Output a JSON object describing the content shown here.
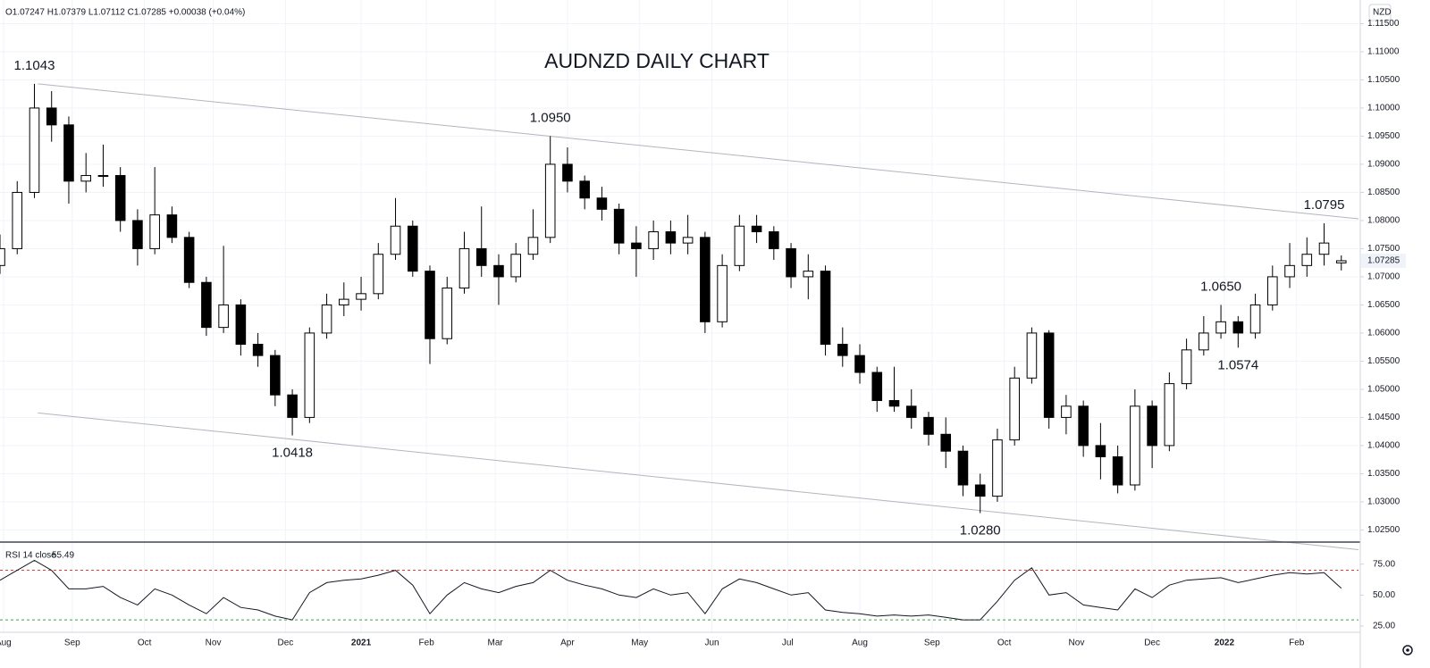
{
  "chart_data": {
    "type": "candlestick",
    "title": "AUDNZD DAILY CHART",
    "legend_text": "O1.07247 H1.07379 L1.07112 C1.07285 +0.00038 (+0.04%)",
    "currency_button": "NZD",
    "x": [
      0,
      5,
      10,
      15,
      20,
      25,
      30,
      35,
      40,
      45,
      50,
      55,
      60,
      65,
      70,
      75,
      80,
      85,
      90,
      95,
      100,
      105,
      110,
      115,
      120,
      125,
      130,
      135,
      140,
      145,
      150,
      155,
      160,
      165,
      170,
      175,
      180,
      185,
      190,
      195,
      200,
      205,
      210,
      215,
      220,
      225,
      230,
      235,
      240,
      245,
      250,
      255,
      260,
      265,
      270,
      275,
      280,
      285,
      290,
      295,
      300,
      305,
      310,
      315,
      320,
      325,
      330,
      335,
      340,
      345,
      350,
      355,
      360,
      365,
      370,
      375,
      380,
      385,
      390
    ],
    "open": [
      1.072,
      1.075,
      1.085,
      1.1,
      1.097,
      1.087,
      1.088,
      1.088,
      1.08,
      1.075,
      1.081,
      1.077,
      1.069,
      1.061,
      1.065,
      1.058,
      1.056,
      1.049,
      1.045,
      1.06,
      1.065,
      1.066,
      1.067,
      1.074,
      1.079,
      1.071,
      1.059,
      1.068,
      1.075,
      1.072,
      1.07,
      1.074,
      1.077,
      1.09,
      1.087,
      1.084,
      1.082,
      1.076,
      1.075,
      1.078,
      1.076,
      1.077,
      1.062,
      1.072,
      1.079,
      1.078,
      1.075,
      1.07,
      1.071,
      1.058,
      1.056,
      1.053,
      1.048,
      1.047,
      1.045,
      1.042,
      1.039,
      1.033,
      1.031,
      1.041,
      1.052,
      1.06,
      1.045,
      1.047,
      1.04,
      1.038,
      1.033,
      1.047,
      1.04,
      1.051,
      1.057,
      1.06,
      1.062,
      1.06,
      1.065,
      1.07,
      1.072,
      1.074,
      1.07247
    ],
    "high": [
      1.0775,
      1.087,
      1.1043,
      1.103,
      1.0985,
      1.092,
      1.0935,
      1.0895,
      1.082,
      1.0895,
      1.0825,
      1.078,
      1.07,
      1.0755,
      1.066,
      1.06,
      1.057,
      1.05,
      1.061,
      1.067,
      1.069,
      1.07,
      1.076,
      1.084,
      1.08,
      1.072,
      1.07,
      1.078,
      1.0825,
      1.074,
      1.076,
      1.082,
      1.095,
      1.093,
      1.088,
      1.086,
      1.083,
      1.079,
      1.08,
      1.08,
      1.081,
      1.078,
      1.074,
      1.081,
      1.081,
      1.079,
      1.076,
      1.074,
      1.072,
      1.061,
      1.058,
      1.054,
      1.054,
      1.05,
      1.046,
      1.045,
      1.04,
      1.035,
      1.043,
      1.054,
      1.061,
      1.0605,
      1.049,
      1.048,
      1.044,
      1.04,
      1.05,
      1.048,
      1.053,
      1.059,
      1.063,
      1.065,
      1.063,
      1.067,
      1.072,
      1.076,
      1.077,
      1.0795,
      1.07379
    ],
    "low": [
      1.0705,
      1.074,
      1.084,
      1.094,
      1.083,
      1.085,
      1.086,
      1.078,
      1.072,
      1.074,
      1.076,
      1.068,
      1.0595,
      1.06,
      1.056,
      1.054,
      1.047,
      1.0418,
      1.044,
      1.059,
      1.063,
      1.064,
      1.066,
      1.073,
      1.07,
      1.0545,
      1.058,
      1.067,
      1.07,
      1.065,
      1.069,
      1.073,
      1.076,
      1.085,
      1.082,
      1.08,
      1.074,
      1.07,
      1.073,
      1.074,
      1.074,
      1.06,
      1.061,
      1.071,
      1.076,
      1.073,
      1.068,
      1.066,
      1.056,
      1.054,
      1.051,
      1.046,
      1.046,
      1.043,
      1.04,
      1.036,
      1.031,
      1.028,
      1.03,
      1.04,
      1.051,
      1.043,
      1.042,
      1.038,
      1.034,
      1.0315,
      1.032,
      1.036,
      1.039,
      1.05,
      1.056,
      1.059,
      1.0574,
      1.059,
      1.064,
      1.068,
      1.07,
      1.072,
      1.07112
    ],
    "close": [
      1.075,
      1.085,
      1.1,
      1.097,
      1.087,
      1.088,
      1.088,
      1.08,
      1.075,
      1.081,
      1.077,
      1.069,
      1.061,
      1.065,
      1.058,
      1.056,
      1.049,
      1.045,
      1.06,
      1.065,
      1.066,
      1.067,
      1.074,
      1.079,
      1.071,
      1.059,
      1.068,
      1.075,
      1.072,
      1.07,
      1.074,
      1.077,
      1.09,
      1.087,
      1.084,
      1.082,
      1.076,
      1.075,
      1.078,
      1.076,
      1.077,
      1.062,
      1.072,
      1.079,
      1.078,
      1.075,
      1.07,
      1.071,
      1.058,
      1.056,
      1.053,
      1.048,
      1.047,
      1.045,
      1.042,
      1.039,
      1.033,
      1.031,
      1.041,
      1.052,
      1.06,
      1.045,
      1.047,
      1.04,
      1.038,
      1.033,
      1.047,
      1.04,
      1.051,
      1.057,
      1.06,
      1.062,
      1.06,
      1.065,
      1.07,
      1.072,
      1.074,
      1.076,
      1.07285
    ],
    "up_color": "#ffffff",
    "down_color": "#000000",
    "xlim": [
      0,
      395
    ],
    "xticks": [
      {
        "value": 1,
        "label": "Aug"
      },
      {
        "value": 21,
        "label": "Sep"
      },
      {
        "value": 42,
        "label": "Oct"
      },
      {
        "value": 62,
        "label": "Nov"
      },
      {
        "value": 83,
        "label": "Dec"
      },
      {
        "value": 105,
        "label": "2021"
      },
      {
        "value": 124,
        "label": "Feb"
      },
      {
        "value": 144,
        "label": "Mar"
      },
      {
        "value": 165,
        "label": "Apr"
      },
      {
        "value": 186,
        "label": "May"
      },
      {
        "value": 207,
        "label": "Jun"
      },
      {
        "value": 229,
        "label": "Jul"
      },
      {
        "value": 250,
        "label": "Aug"
      },
      {
        "value": 271,
        "label": "Sep"
      },
      {
        "value": 292,
        "label": "Oct"
      },
      {
        "value": 313,
        "label": "Nov"
      },
      {
        "value": 335,
        "label": "Dec"
      },
      {
        "value": 356,
        "label": "2022"
      },
      {
        "value": 377,
        "label": "Feb"
      }
    ],
    "ylim": [
      1.023,
      1.1192
    ],
    "yticks": [
      {
        "value": 1.025,
        "label": "1.02500"
      },
      {
        "value": 1.03,
        "label": "1.03000"
      },
      {
        "value": 1.035,
        "label": "1.03500"
      },
      {
        "value": 1.04,
        "label": "1.04000"
      },
      {
        "value": 1.045,
        "label": "1.04500"
      },
      {
        "value": 1.05,
        "label": "1.05000"
      },
      {
        "value": 1.055,
        "label": "1.05500"
      },
      {
        "value": 1.06,
        "label": "1.06000"
      },
      {
        "value": 1.065,
        "label": "1.06500"
      },
      {
        "value": 1.07,
        "label": "1.07000"
      },
      {
        "value": 1.075,
        "label": "1.07500"
      },
      {
        "value": 1.08,
        "label": "1.08000"
      },
      {
        "value": 1.085,
        "label": "1.08500"
      },
      {
        "value": 1.09,
        "label": "1.09000"
      },
      {
        "value": 1.095,
        "label": "1.09500"
      },
      {
        "value": 1.1,
        "label": "1.10000"
      },
      {
        "value": 1.105,
        "label": "1.10500"
      },
      {
        "value": 1.11,
        "label": "1.11000"
      },
      {
        "value": 1.115,
        "label": "1.11500"
      }
    ],
    "grid": true,
    "annotations": [
      {
        "x": 10,
        "value": 1.1043,
        "label": "1.1043",
        "position": "above"
      },
      {
        "x": 160,
        "value": 1.095,
        "label": "1.0950",
        "position": "above"
      },
      {
        "x": 85,
        "value": 1.0418,
        "label": "1.0418",
        "position": "below"
      },
      {
        "x": 285,
        "value": 1.028,
        "label": "1.0280",
        "position": "below"
      },
      {
        "x": 355,
        "value": 1.065,
        "label": "1.0650",
        "position": "above"
      },
      {
        "x": 360,
        "value": 1.0574,
        "label": "1.0574",
        "position": "below"
      },
      {
        "x": 385,
        "value": 1.0795,
        "label": "1.0795",
        "position": "above"
      }
    ],
    "trendlines": [
      {
        "x": [
          11,
          395
        ],
        "y": [
          1.1043,
          1.0803
        ],
        "color": "#b2b5be"
      },
      {
        "x": [
          11,
          395
        ],
        "y": [
          1.0458,
          1.0215
        ],
        "color": "#b2b5be"
      }
    ],
    "rsi": {
      "label": "RSI 14 close",
      "color": "#131722",
      "values": [
        62,
        70,
        78,
        70,
        55,
        55,
        57,
        48,
        42,
        55,
        50,
        42,
        35,
        48,
        40,
        38,
        33,
        30,
        52,
        60,
        62,
        63,
        66,
        70,
        58,
        35,
        50,
        60,
        55,
        52,
        57,
        60,
        70,
        62,
        58,
        55,
        50,
        48,
        55,
        50,
        52,
        35,
        55,
        63,
        60,
        55,
        50,
        52,
        38,
        36,
        35,
        33,
        34,
        33,
        34,
        32,
        30,
        30,
        45,
        62,
        72,
        50,
        52,
        42,
        40,
        38,
        55,
        48,
        58,
        62,
        63,
        64,
        60,
        63,
        66,
        68,
        67,
        68,
        55.49
      ],
      "ylim": [
        20,
        92
      ],
      "yticks": [
        {
          "value": 25,
          "label": "25.00"
        },
        {
          "value": 50,
          "label": "50.00"
        },
        {
          "value": 75,
          "label": "75.00"
        }
      ],
      "bands": [
        {
          "value": 70,
          "color": "#e53935"
        },
        {
          "value": 30,
          "color": "#43a047"
        }
      ]
    }
  }
}
